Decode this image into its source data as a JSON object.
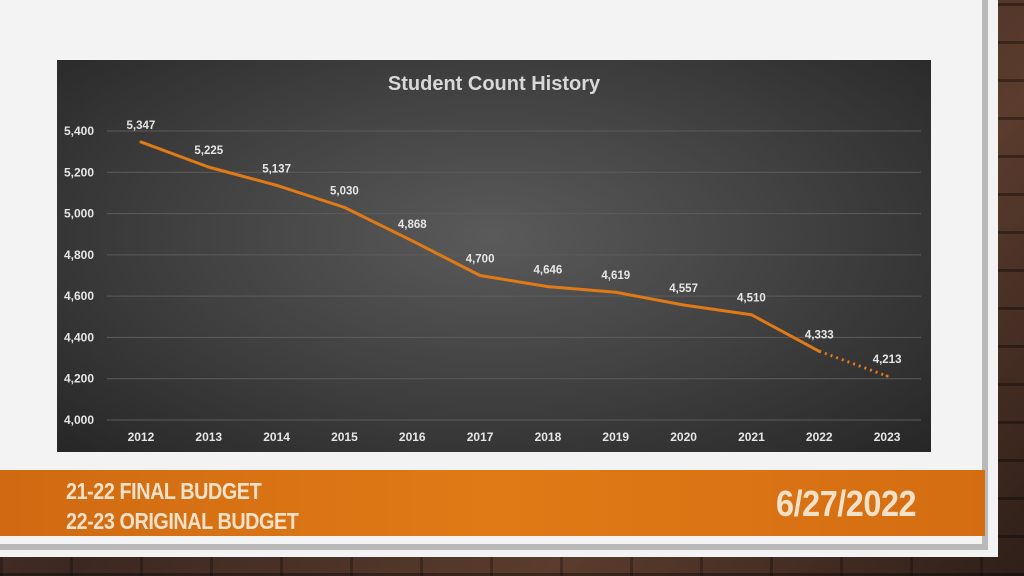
{
  "footer": {
    "line1": "21-22 FINAL BUDGET",
    "line2": "22-23 ORIGINAL BUDGET",
    "date": "6/27/2022"
  },
  "colors": {
    "accent": "#e07a16",
    "line": "#e07a16",
    "chart_bg": "#3e3e3e"
  },
  "chart_data": {
    "type": "line",
    "title": "Student Count History",
    "xlabel": "",
    "ylabel": "",
    "categories": [
      "2012",
      "2013",
      "2014",
      "2015",
      "2016",
      "2017",
      "2018",
      "2019",
      "2020",
      "2021",
      "2022",
      "2023"
    ],
    "series": [
      {
        "values": [
          5347,
          5225,
          5137,
          5030,
          4868,
          4700,
          4646,
          4619,
          4557,
          4510,
          4333,
          4213
        ],
        "data_labels": [
          "5,347",
          "5,225",
          "5,137",
          "5,030",
          "4,868",
          "4,700",
          "4,646",
          "4,619",
          "4,557",
          "4,510",
          "4,333",
          "4,213"
        ],
        "projected_from_index": 10
      }
    ],
    "ylim": [
      4000,
      5400
    ],
    "yticks": [
      4000,
      4200,
      4400,
      4600,
      4800,
      5000,
      5200,
      5400
    ],
    "ytick_labels": [
      "4,000",
      "4,200",
      "4,400",
      "4,600",
      "4,800",
      "5,000",
      "5,200",
      "5,400"
    ],
    "grid": true,
    "legend": "none"
  }
}
